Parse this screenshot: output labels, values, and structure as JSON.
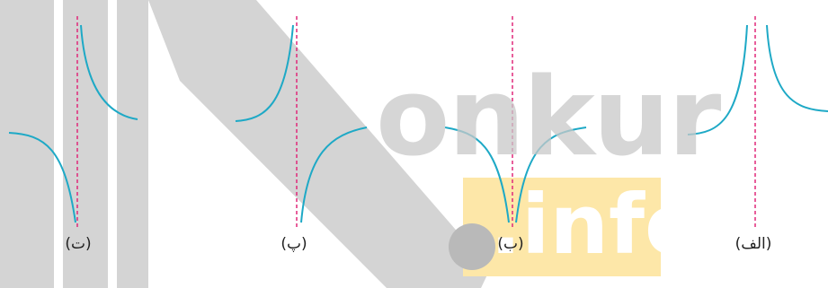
{
  "panels": [
    {
      "id": "alef",
      "label": "(الف)"
    },
    {
      "id": "be",
      "label": "(ب)"
    },
    {
      "id": "pe",
      "label": "(پ)"
    },
    {
      "id": "te",
      "label": "(ت)"
    }
  ],
  "watermark": {
    "text1": "onkur",
    "text2": ".info"
  },
  "colors": {
    "curve": "#1ea9c6",
    "asymptote": "#e0287a",
    "watermark_gray": "#c9c9c9",
    "watermark_yellow": "#fde7a8",
    "watermark_dot": "#b9b9b9",
    "label": "#222222"
  }
}
